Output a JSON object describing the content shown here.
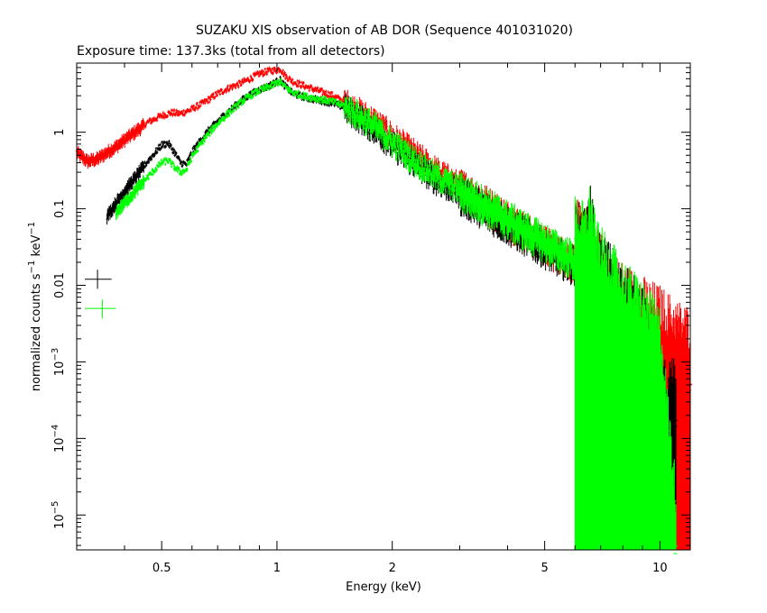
{
  "chart_data": {
    "type": "scatter",
    "title": "SUZAKU XIS observation of AB DOR (Sequence 401031020)",
    "subtitle": "Exposure time: 137.3ks (total from all detectors)",
    "xlabel": "Energy (keV)",
    "ylabel": {
      "base1": "normalized counts s",
      "sup1": "−1",
      "base2": " keV",
      "sup2": "−1"
    },
    "xscale": "log",
    "yscale": "log",
    "xlim": [
      0.3,
      12
    ],
    "ylim": [
      3.5e-06,
      8
    ],
    "x_ticks": [
      {
        "value": 0.5,
        "label": "0.5"
      },
      {
        "value": 1,
        "label": "1"
      },
      {
        "value": 2,
        "label": "2"
      },
      {
        "value": 5,
        "label": "5"
      },
      {
        "value": 10,
        "label": "10"
      }
    ],
    "y_ticks": [
      {
        "value": 1,
        "base": "1",
        "exp": ""
      },
      {
        "value": 0.1,
        "base": "0.1",
        "exp": ""
      },
      {
        "value": 0.01,
        "base": "0.01",
        "exp": ""
      },
      {
        "value": 0.001,
        "base": "10",
        "exp": "−3"
      },
      {
        "value": 0.0001,
        "base": "10",
        "exp": "−4"
      },
      {
        "value": 1e-05,
        "base": "10",
        "exp": "−5"
      }
    ],
    "grid": false,
    "series": [
      {
        "color": "#ff0000",
        "points": [
          [
            0.3,
            0.55
          ],
          [
            0.32,
            0.42
          ],
          [
            0.34,
            0.45
          ],
          [
            0.36,
            0.55
          ],
          [
            0.38,
            0.65
          ],
          [
            0.4,
            0.8
          ],
          [
            0.43,
            1.05
          ],
          [
            0.46,
            1.35
          ],
          [
            0.5,
            1.65
          ],
          [
            0.53,
            1.8
          ],
          [
            0.56,
            1.75
          ],
          [
            0.6,
            2.0
          ],
          [
            0.65,
            2.5
          ],
          [
            0.7,
            3.2
          ],
          [
            0.75,
            3.8
          ],
          [
            0.8,
            4.3
          ],
          [
            0.85,
            5.0
          ],
          [
            0.9,
            5.8
          ],
          [
            0.95,
            6.3
          ],
          [
            1.0,
            6.5
          ],
          [
            1.02,
            6.8
          ],
          [
            1.05,
            5.5
          ],
          [
            1.1,
            4.6
          ],
          [
            1.2,
            3.9
          ],
          [
            1.3,
            3.4
          ],
          [
            1.4,
            3.0
          ],
          [
            1.5,
            2.5
          ],
          [
            1.6,
            2.0
          ],
          [
            1.8,
            1.4
          ],
          [
            2.0,
            0.9
          ],
          [
            2.3,
            0.52
          ],
          [
            2.6,
            0.32
          ],
          [
            3.0,
            0.2
          ],
          [
            3.5,
            0.12
          ],
          [
            4.0,
            0.075
          ],
          [
            4.5,
            0.05
          ],
          [
            5.0,
            0.035
          ],
          [
            5.5,
            0.026
          ],
          [
            6.0,
            0.02
          ],
          [
            6.4,
            0.016
          ],
          [
            6.6,
            0.018
          ],
          [
            6.8,
            0.009
          ],
          [
            7.2,
            0.006
          ],
          [
            7.6,
            0.004
          ],
          [
            8.0,
            0.003
          ],
          [
            9.0,
            0.002
          ],
          [
            10.0,
            0.0015
          ],
          [
            11.0,
            0.001
          ],
          [
            12.0,
            0.0008
          ]
        ]
      },
      {
        "color": "#000000",
        "points": [
          [
            0.36,
            0.08
          ],
          [
            0.38,
            0.12
          ],
          [
            0.4,
            0.17
          ],
          [
            0.43,
            0.27
          ],
          [
            0.46,
            0.42
          ],
          [
            0.5,
            0.68
          ],
          [
            0.52,
            0.72
          ],
          [
            0.54,
            0.55
          ],
          [
            0.56,
            0.4
          ],
          [
            0.58,
            0.38
          ],
          [
            0.6,
            0.55
          ],
          [
            0.65,
            0.95
          ],
          [
            0.7,
            1.4
          ],
          [
            0.75,
            1.9
          ],
          [
            0.8,
            2.5
          ],
          [
            0.85,
            3.1
          ],
          [
            0.9,
            3.6
          ],
          [
            0.95,
            4.0
          ],
          [
            1.0,
            4.6
          ],
          [
            1.02,
            4.8
          ],
          [
            1.05,
            4.0
          ],
          [
            1.1,
            3.2
          ],
          [
            1.2,
            2.8
          ],
          [
            1.3,
            2.6
          ],
          [
            1.4,
            2.4
          ],
          [
            1.5,
            2.1
          ],
          [
            1.6,
            1.7
          ],
          [
            1.8,
            1.1
          ],
          [
            2.0,
            0.68
          ],
          [
            2.3,
            0.38
          ],
          [
            2.6,
            0.24
          ],
          [
            3.0,
            0.16
          ],
          [
            3.5,
            0.1
          ],
          [
            4.0,
            0.065
          ],
          [
            4.5,
            0.045
          ],
          [
            5.0,
            0.032
          ],
          [
            5.5,
            0.024
          ],
          [
            6.0,
            0.019
          ],
          [
            6.4,
            0.016
          ],
          [
            6.6,
            0.03
          ],
          [
            6.8,
            0.01
          ],
          [
            7.2,
            0.0065
          ],
          [
            7.6,
            0.0045
          ],
          [
            8.0,
            0.003
          ],
          [
            9.0,
            0.0015
          ],
          [
            10.0,
            0.00015
          ],
          [
            11.0,
            0.0002
          ]
        ]
      },
      {
        "color": "#00ff00",
        "points": [
          [
            0.38,
            0.09
          ],
          [
            0.4,
            0.12
          ],
          [
            0.43,
            0.18
          ],
          [
            0.46,
            0.26
          ],
          [
            0.5,
            0.4
          ],
          [
            0.52,
            0.43
          ],
          [
            0.54,
            0.35
          ],
          [
            0.56,
            0.3
          ],
          [
            0.58,
            0.32
          ],
          [
            0.6,
            0.48
          ],
          [
            0.65,
            0.85
          ],
          [
            0.7,
            1.3
          ],
          [
            0.75,
            1.8
          ],
          [
            0.8,
            2.4
          ],
          [
            0.85,
            3.0
          ],
          [
            0.9,
            3.5
          ],
          [
            0.95,
            3.9
          ],
          [
            1.0,
            4.4
          ],
          [
            1.02,
            4.6
          ],
          [
            1.05,
            3.9
          ],
          [
            1.1,
            3.3
          ],
          [
            1.2,
            2.9
          ],
          [
            1.3,
            2.7
          ],
          [
            1.4,
            2.5
          ],
          [
            1.5,
            2.2
          ],
          [
            1.6,
            1.8
          ],
          [
            1.8,
            1.2
          ],
          [
            2.0,
            0.75
          ],
          [
            2.3,
            0.42
          ],
          [
            2.6,
            0.27
          ],
          [
            3.0,
            0.18
          ],
          [
            3.5,
            0.115
          ],
          [
            4.0,
            0.075
          ],
          [
            4.5,
            0.052
          ],
          [
            5.0,
            0.038
          ],
          [
            5.5,
            0.028
          ],
          [
            6.0,
            0.022
          ],
          [
            6.4,
            0.018
          ],
          [
            6.6,
            0.035
          ],
          [
            6.8,
            0.011
          ],
          [
            7.2,
            0.007
          ],
          [
            7.6,
            0.0048
          ],
          [
            8.0,
            0.0033
          ],
          [
            9.0,
            0.0018
          ],
          [
            10.0,
            0.0008
          ],
          [
            11.0,
            5e-06
          ]
        ]
      }
    ]
  }
}
